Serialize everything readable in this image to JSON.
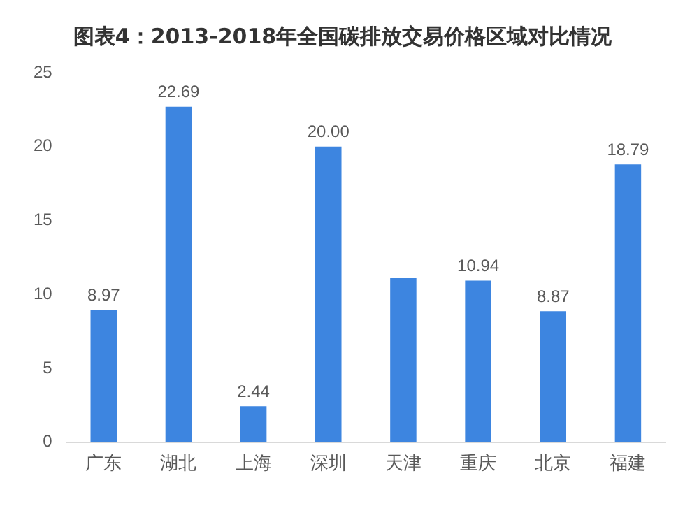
{
  "chart_data": {
    "type": "bar",
    "title": "图表4：2013-2018年全国碳排放交易价格区域对比情况",
    "categories": [
      "广东",
      "湖北",
      "上海",
      "深圳",
      "天津",
      "重庆",
      "北京",
      "福建"
    ],
    "values": [
      8.97,
      22.69,
      2.44,
      20.0,
      11.1,
      10.94,
      8.87,
      18.79
    ],
    "value_labels": [
      "8.97",
      "22.69",
      "2.44",
      "20.00",
      null,
      "10.94",
      "8.87",
      "18.79"
    ],
    "color": "#3d85e0",
    "ylim": [
      0,
      25
    ],
    "yticks": [
      0,
      5,
      10,
      15,
      20,
      25
    ],
    "grid": false,
    "legend": false
  }
}
